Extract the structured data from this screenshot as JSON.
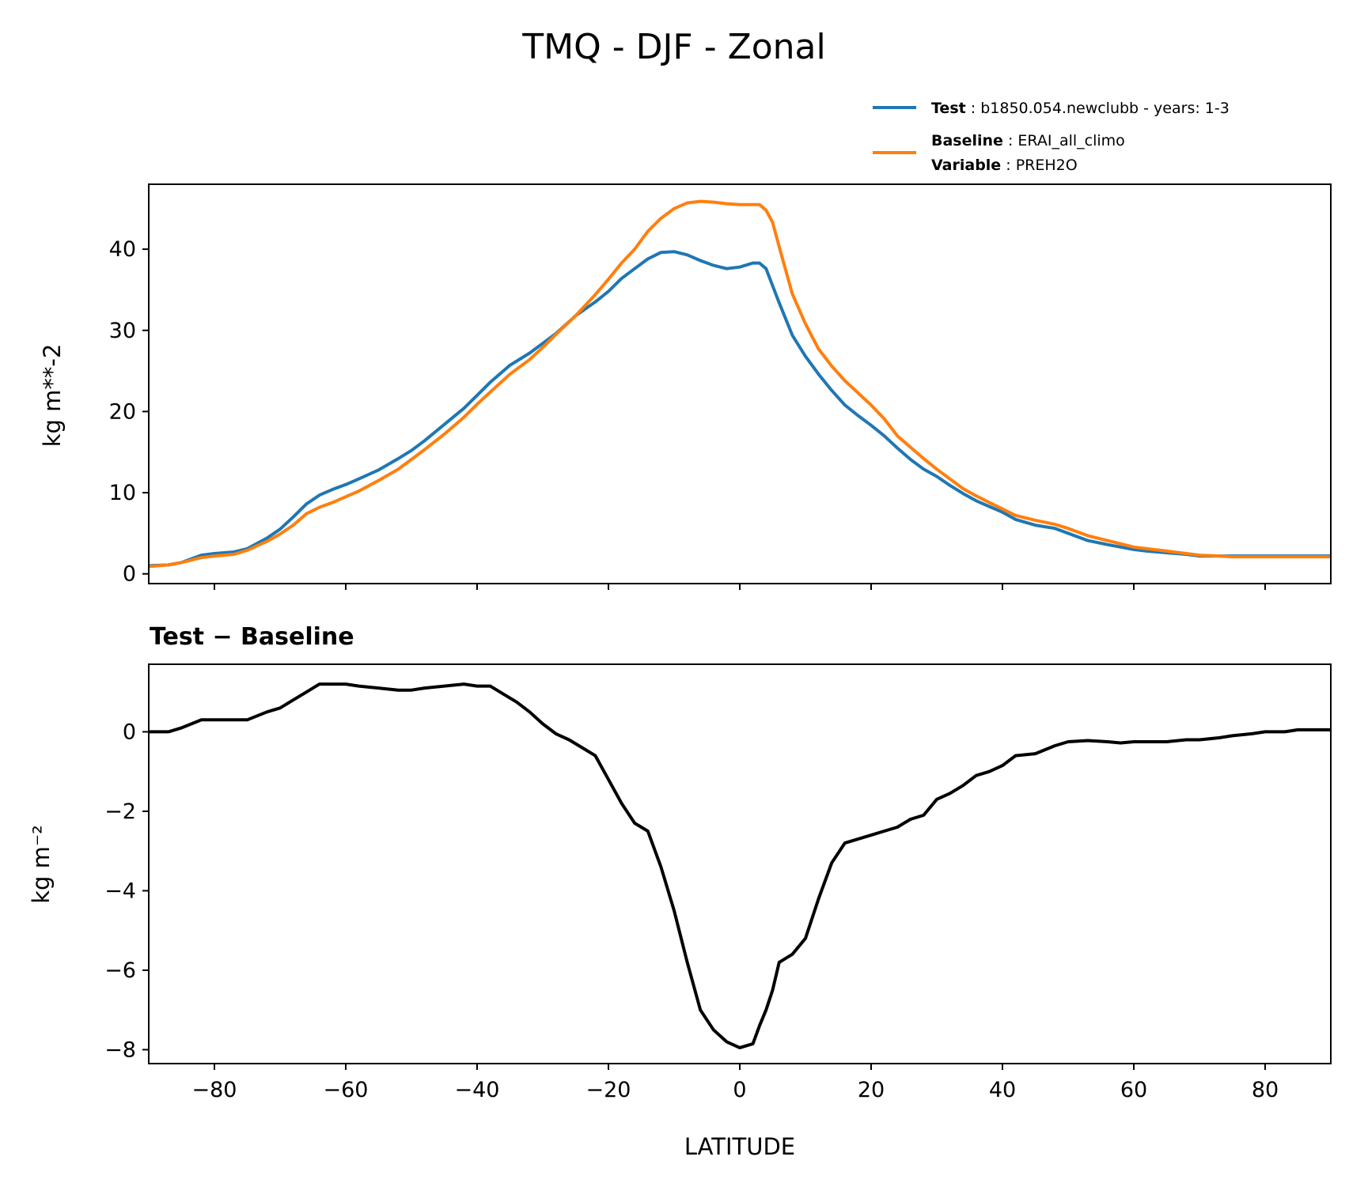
{
  "chart_data": [
    {
      "type": "line",
      "title": "TMQ - DJF - Zonal",
      "ylabel": "kg m**-2",
      "xlim": [
        -90,
        90
      ],
      "ylim": [
        -1.2,
        48
      ],
      "yticks": [
        0,
        10,
        20,
        30,
        40
      ],
      "yticklabels": [
        "0",
        "10",
        "20",
        "30",
        "40"
      ],
      "xticks": [
        -80,
        -60,
        -40,
        -20,
        0,
        20,
        40,
        60,
        80
      ],
      "grid": false,
      "legend_position": "above-right",
      "legend": {
        "test_key": "Test",
        "test_value": "b1850.054.newclubb - years: 1-3",
        "baseline_key": "Baseline",
        "baseline_value": "ERAI_all_climo",
        "variable_key": "Variable",
        "variable_value": "PREH2O"
      },
      "colors": {
        "test": "#1f77b4",
        "baseline": "#ff7f0e"
      },
      "series": [
        {
          "name": "Test",
          "x": [
            -90,
            -87,
            -85,
            -82,
            -80,
            -77,
            -75,
            -72,
            -70,
            -68,
            -66,
            -64,
            -62,
            -60,
            -58,
            -55,
            -52,
            -50,
            -48,
            -45,
            -42,
            -40,
            -38,
            -35,
            -32,
            -30,
            -28,
            -25,
            -22,
            -20,
            -18,
            -16,
            -14,
            -12,
            -10,
            -8,
            -6,
            -4,
            -2,
            0,
            2,
            3,
            4,
            5,
            6,
            8,
            10,
            12,
            14,
            16,
            18,
            20,
            22,
            24,
            26,
            28,
            30,
            32,
            34,
            36,
            38,
            40,
            42,
            45,
            48,
            50,
            53,
            56,
            58,
            60,
            62,
            65,
            68,
            70,
            73,
            75,
            78,
            80,
            83,
            85,
            88,
            90
          ],
          "y": [
            1.0,
            1.1,
            1.4,
            2.3,
            2.5,
            2.7,
            3.1,
            4.4,
            5.5,
            7.0,
            8.6,
            9.7,
            10.4,
            11.0,
            11.7,
            12.8,
            14.2,
            15.2,
            16.4,
            18.4,
            20.4,
            22.0,
            23.6,
            25.7,
            27.2,
            28.4,
            29.6,
            31.8,
            33.5,
            34.8,
            36.4,
            37.6,
            38.8,
            39.6,
            39.7,
            39.3,
            38.6,
            38.0,
            37.6,
            37.8,
            38.3,
            38.3,
            37.6,
            35.5,
            33.4,
            29.4,
            26.8,
            24.6,
            22.6,
            20.8,
            19.5,
            18.3,
            17.0,
            15.5,
            14.1,
            12.9,
            12.0,
            10.9,
            9.9,
            9.0,
            8.3,
            7.6,
            6.7,
            6.0,
            5.6,
            5.0,
            4.1,
            3.6,
            3.3,
            3.0,
            2.8,
            2.6,
            2.4,
            2.2,
            2.2,
            2.2,
            2.2,
            2.2,
            2.2,
            2.2,
            2.2,
            2.2
          ]
        },
        {
          "name": "Baseline",
          "x": [
            -90,
            -87,
            -85,
            -82,
            -80,
            -77,
            -75,
            -72,
            -70,
            -68,
            -66,
            -64,
            -62,
            -60,
            -58,
            -55,
            -52,
            -50,
            -48,
            -45,
            -42,
            -40,
            -38,
            -35,
            -32,
            -30,
            -28,
            -25,
            -22,
            -20,
            -18,
            -16,
            -14,
            -12,
            -10,
            -8,
            -6,
            -4,
            -2,
            0,
            2,
            3,
            4,
            5,
            6,
            8,
            10,
            12,
            14,
            16,
            18,
            20,
            22,
            24,
            26,
            28,
            30,
            32,
            34,
            36,
            38,
            40,
            42,
            45,
            48,
            50,
            53,
            56,
            58,
            60,
            62,
            65,
            68,
            70,
            73,
            75,
            78,
            80,
            83,
            85,
            88,
            90
          ],
          "y": [
            0.9,
            1.1,
            1.4,
            2.0,
            2.2,
            2.4,
            2.9,
            4.0,
            4.9,
            6.0,
            7.4,
            8.2,
            8.8,
            9.5,
            10.2,
            11.5,
            12.9,
            14.1,
            15.3,
            17.2,
            19.3,
            20.9,
            22.4,
            24.6,
            26.4,
            27.9,
            29.5,
            31.8,
            34.4,
            36.3,
            38.3,
            40.0,
            42.2,
            43.8,
            45.0,
            45.7,
            45.9,
            45.8,
            45.6,
            45.5,
            45.5,
            45.5,
            44.8,
            43.3,
            40.3,
            34.5,
            30.8,
            27.7,
            25.6,
            23.8,
            22.3,
            20.8,
            19.1,
            17.0,
            15.6,
            14.2,
            12.9,
            11.7,
            10.5,
            9.6,
            8.8,
            8.0,
            7.2,
            6.6,
            6.1,
            5.6,
            4.7,
            4.1,
            3.7,
            3.3,
            3.1,
            2.8,
            2.5,
            2.3,
            2.2,
            2.1,
            2.1,
            2.1,
            2.1,
            2.1,
            2.1,
            2.1
          ]
        }
      ]
    },
    {
      "type": "line",
      "title": "Test − Baseline",
      "ylabel": "kg m⁻²",
      "xlabel": "LATITUDE",
      "xlim": [
        -90,
        90
      ],
      "ylim": [
        -8.35,
        1.7
      ],
      "yticks": [
        0,
        -2,
        -4,
        -6,
        -8
      ],
      "yticklabels": [
        "0",
        "−2",
        "−4",
        "−6",
        "−8"
      ],
      "xticks": [
        -80,
        -60,
        -40,
        -20,
        0,
        20,
        40,
        60,
        80
      ],
      "xticklabels": [
        "−80",
        "−60",
        "−40",
        "−20",
        "0",
        "20",
        "40",
        "60",
        "80"
      ],
      "grid": false,
      "colors": {
        "difference": "#000000"
      },
      "series": [
        {
          "name": "",
          "x": [
            -90,
            -87,
            -85,
            -82,
            -80,
            -78,
            -75,
            -72,
            -70,
            -68,
            -66,
            -64,
            -62,
            -60,
            -58,
            -55,
            -52,
            -50,
            -48,
            -45,
            -42,
            -40,
            -38,
            -36,
            -34,
            -32,
            -30,
            -28,
            -26,
            -24,
            -22,
            -20,
            -18,
            -16,
            -14,
            -12,
            -10,
            -8,
            -6,
            -4,
            -2,
            0,
            2,
            3,
            4,
            5,
            6,
            8,
            10,
            12,
            14,
            16,
            18,
            20,
            22,
            24,
            26,
            28,
            30,
            32,
            34,
            36,
            38,
            40,
            42,
            45,
            48,
            50,
            53,
            56,
            58,
            60,
            62,
            65,
            68,
            70,
            73,
            75,
            78,
            80,
            83,
            85,
            88,
            90
          ],
          "y": [
            0.0,
            0.0,
            0.1,
            0.3,
            0.3,
            0.3,
            0.3,
            0.5,
            0.6,
            0.8,
            1.0,
            1.2,
            1.2,
            1.2,
            1.15,
            1.1,
            1.05,
            1.05,
            1.1,
            1.15,
            1.2,
            1.15,
            1.15,
            0.95,
            0.75,
            0.5,
            0.2,
            -0.05,
            -0.2,
            -0.4,
            -0.6,
            -1.2,
            -1.8,
            -2.3,
            -2.5,
            -3.4,
            -4.5,
            -5.8,
            -7.0,
            -7.5,
            -7.8,
            -7.95,
            -7.85,
            -7.4,
            -7.0,
            -6.5,
            -5.8,
            -5.6,
            -5.2,
            -4.2,
            -3.3,
            -2.8,
            -2.7,
            -2.6,
            -2.5,
            -2.4,
            -2.2,
            -2.1,
            -1.7,
            -1.55,
            -1.35,
            -1.1,
            -1.0,
            -0.85,
            -0.6,
            -0.55,
            -0.35,
            -0.25,
            -0.22,
            -0.25,
            -0.28,
            -0.25,
            -0.25,
            -0.25,
            -0.2,
            -0.2,
            -0.15,
            -0.1,
            -0.05,
            0.0,
            0.0,
            0.05,
            0.05,
            0.05
          ]
        }
      ]
    }
  ]
}
